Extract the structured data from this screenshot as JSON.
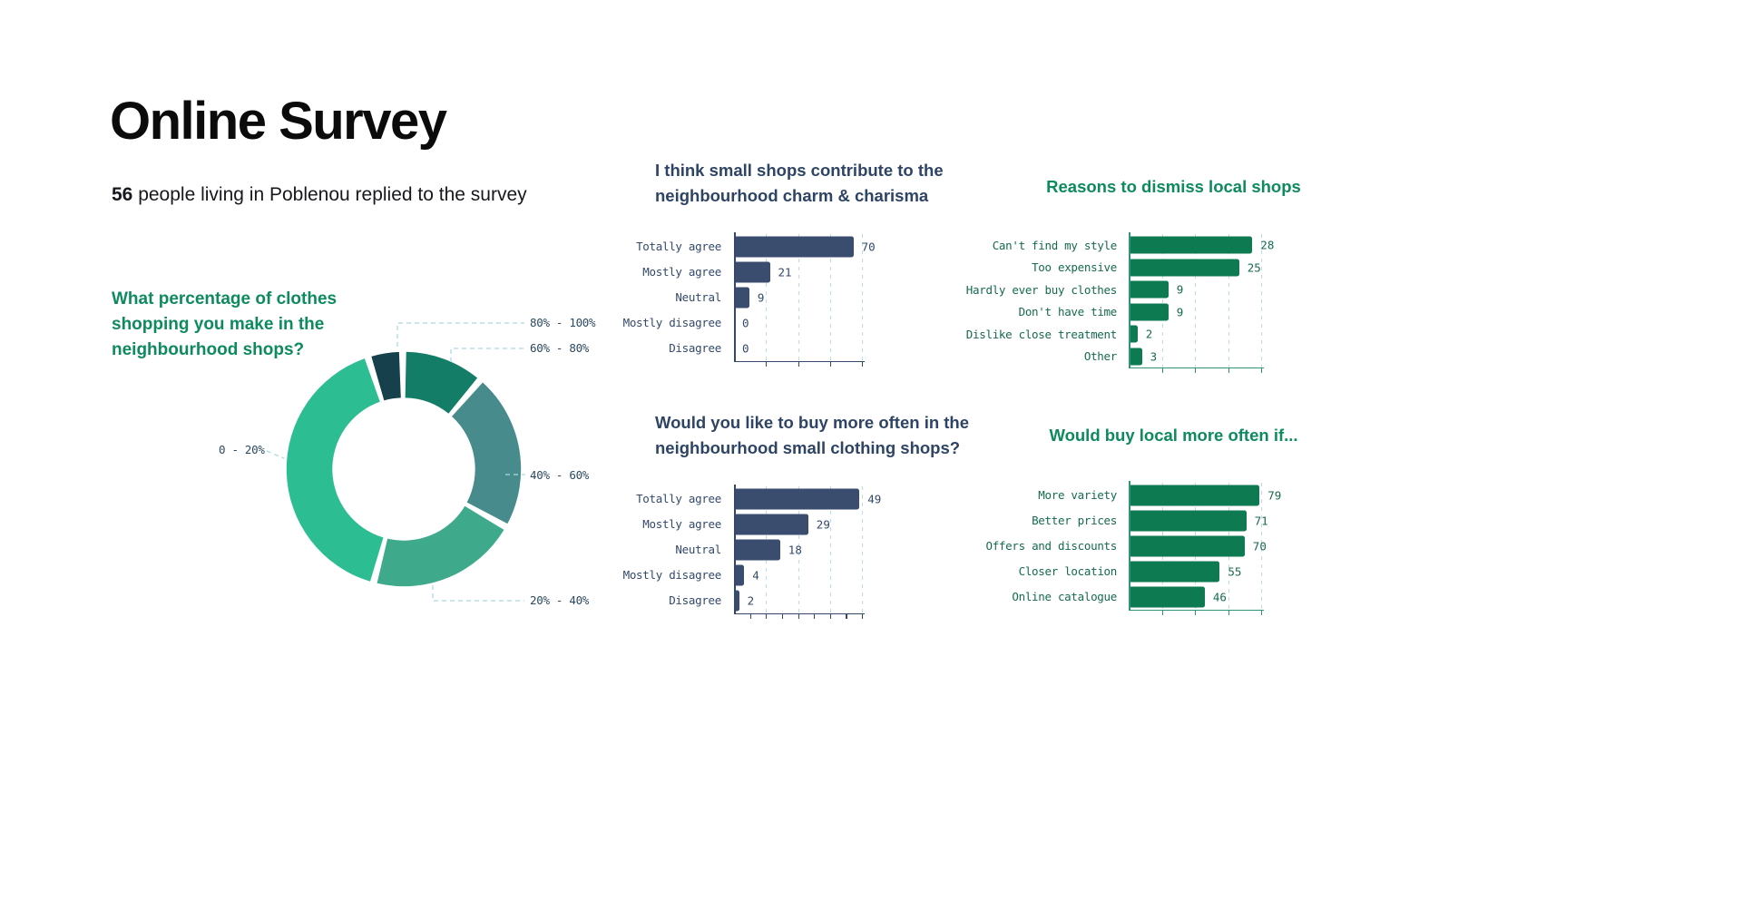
{
  "page": {
    "title": "Online Survey",
    "subtitle": {
      "count": "56",
      "text": " people living in Poblenou replied to the survey"
    }
  },
  "colors": {
    "page_title": "#0b0b0b",
    "subtitle_text": "#16181d",
    "navy_heading": "#2e4465",
    "navy_bar": "#3a4d6e",
    "navy_text": "#33496b",
    "navy_axis": "#33496b",
    "green_heading": "#0e8a5f",
    "green_bar": "#0d7a52",
    "green_text": "#156a50",
    "green_axis": "#2f9478",
    "grid_line": "#b8dfe8",
    "leader_line": "#a9dbe2",
    "donut_label": "#2c4a5f"
  },
  "chart_data": [
    {
      "id": "neighbourhood-shopping-share",
      "type": "pie",
      "style": "donut",
      "title": "What percentage of clothes shopping you make in the neighbourhood shops?",
      "labels": [
        "80% - 100%",
        "60% - 80%",
        "40% - 60%",
        "20% - 40%",
        "0 - 20%"
      ],
      "values_pct": [
        4,
        11,
        22,
        21,
        42
      ],
      "colors": [
        "#17404d",
        "#147d67",
        "#478b8c",
        "#3fa98c",
        "#2dbd92"
      ],
      "legend_position": "callout-labels"
    },
    {
      "id": "small-shops-charm",
      "type": "bar",
      "orientation": "horizontal",
      "title": "I think small shops contribute to the neighbourhood charm & charisma",
      "categories": [
        "Totally agree",
        "Mostly agree",
        "Neutral",
        "Mostly disagree",
        "Disagree"
      ],
      "values": [
        70,
        21,
        9,
        0,
        0
      ],
      "xlim": [
        0,
        75
      ],
      "grid": true,
      "theme": "navy"
    },
    {
      "id": "reasons-dismiss-local-shops",
      "type": "bar",
      "orientation": "horizontal",
      "title": "Reasons to dismiss local shops",
      "categories": [
        "Can't find my style",
        "Too expensive",
        "Hardly ever buy clothes",
        "Don't have time",
        "Dislike close treatment",
        "Other"
      ],
      "values": [
        28,
        25,
        9,
        9,
        2,
        3
      ],
      "xlim": [
        0,
        30
      ],
      "grid": true,
      "theme": "green"
    },
    {
      "id": "buy-more-often-small-shops",
      "type": "bar",
      "orientation": "horizontal",
      "title": "Would you like to buy more often in the neighbourhood small clothing shops?",
      "categories": [
        "Totally agree",
        "Mostly agree",
        "Neutral",
        "Mostly disagree",
        "Disagree"
      ],
      "values": [
        49,
        29,
        18,
        4,
        2
      ],
      "xlim": [
        0,
        50
      ],
      "grid": true,
      "theme": "navy"
    },
    {
      "id": "would-buy-local-more-often-if",
      "type": "bar",
      "orientation": "horizontal",
      "title": "Would buy local more often if...",
      "categories": [
        "More variety",
        "Better prices",
        "Offers and discounts",
        "Closer location",
        "Online catalogue"
      ],
      "values": [
        79,
        71,
        70,
        55,
        46
      ],
      "xlim": [
        0,
        80
      ],
      "grid": true,
      "theme": "green"
    }
  ]
}
